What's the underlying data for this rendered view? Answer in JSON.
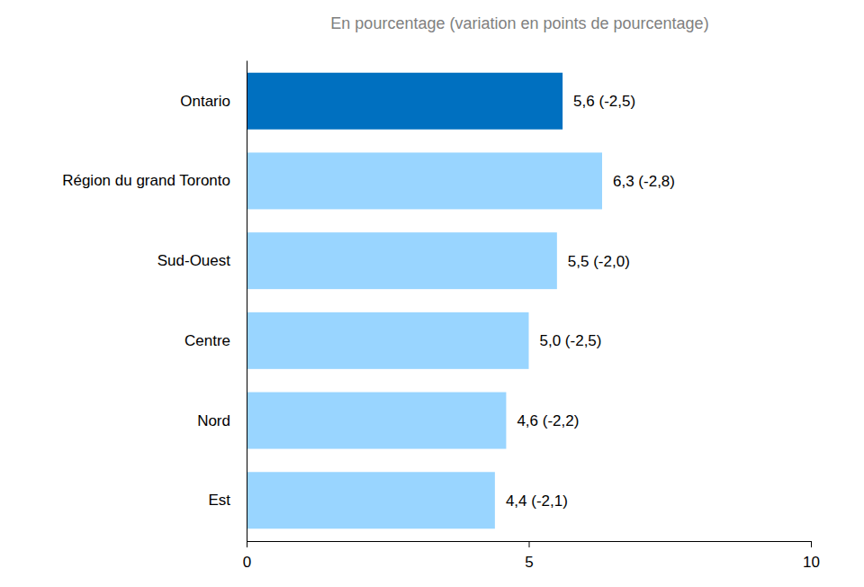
{
  "chart_data": {
    "type": "bar",
    "orientation": "horizontal",
    "title": "En pourcentage (variation en points de pourcentage)",
    "categories": [
      "Ontario",
      "Région du grand Toronto",
      "Sud-Ouest",
      "Centre",
      "Nord",
      "Est"
    ],
    "values": [
      5.6,
      6.3,
      5.5,
      5.0,
      4.6,
      4.4
    ],
    "value_labels": [
      "5,6 (-2,5)",
      "6,3 (-2,8)",
      "5,5 (-2,0)",
      "5,0 (-2,5)",
      "4,6 (-2,2)",
      "4,4 (-2,1)"
    ],
    "colors": [
      "#0070c0",
      "#99d5ff",
      "#99d5ff",
      "#99d5ff",
      "#99d5ff",
      "#99d5ff"
    ],
    "xlim": [
      0,
      10
    ],
    "xticks": [
      0,
      5,
      10
    ],
    "data_labels": true,
    "grid": false
  }
}
